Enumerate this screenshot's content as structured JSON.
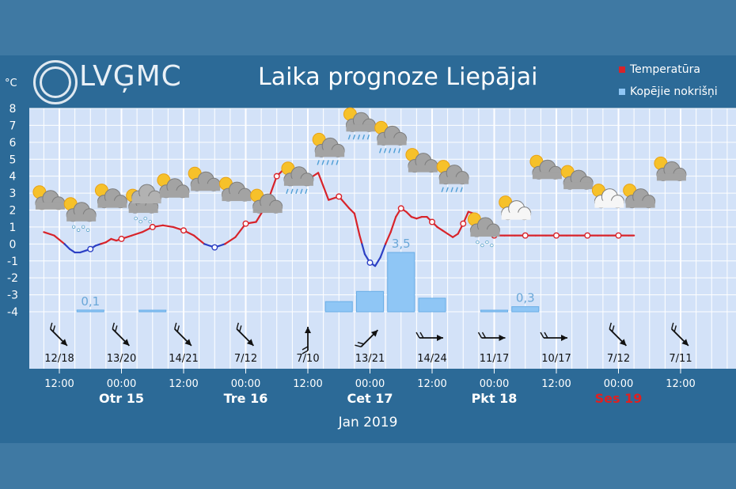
{
  "header": {
    "logo": "LVĢMC",
    "title": "Laika prognoze Liepājai",
    "unit": "°C"
  },
  "legend": [
    {
      "label": "Temperatūra",
      "color": "#d8232a"
    },
    {
      "label": "Kopējie nokrišņi",
      "color": "#8fc6f5"
    }
  ],
  "colors": {
    "temp_above": "#d8232a",
    "temp_below": "#2b3fc4",
    "plot_bg": "#d3e2f8",
    "bar": "#8fc6f5",
    "saturday": "#e02020"
  },
  "chart_data": {
    "type": "line",
    "title": "Laika prognoze Liepājai",
    "ylabel": "°C",
    "ylim": [
      -4,
      8
    ],
    "yticks": [
      8,
      7,
      6,
      5,
      4,
      3,
      2,
      1,
      0,
      -1,
      -2,
      -3,
      -4
    ],
    "grid": true,
    "legend_position": "top-right",
    "xlim_hours": [
      -3,
      111
    ],
    "time_ticks": [
      {
        "h": 0,
        "time": "12:00",
        "day": ""
      },
      {
        "h": 12,
        "time": "00:00",
        "day": "Otr 15"
      },
      {
        "h": 24,
        "time": "12:00",
        "day": ""
      },
      {
        "h": 36,
        "time": "00:00",
        "day": "Tre 16"
      },
      {
        "h": 48,
        "time": "12:00",
        "day": ""
      },
      {
        "h": 60,
        "time": "00:00",
        "day": "Cet 17"
      },
      {
        "h": 72,
        "time": "12:00",
        "day": ""
      },
      {
        "h": 84,
        "time": "00:00",
        "day": "Pkt 18"
      },
      {
        "h": 96,
        "time": "12:00",
        "day": ""
      },
      {
        "h": 108,
        "time": "00:00",
        "day": "Ses 19"
      },
      {
        "h": 120,
        "time": "12:00",
        "day": ""
      }
    ],
    "month_label": "Jan 2019",
    "series": [
      {
        "name": "Temperatūra",
        "x_hours": [
          -3,
          -1,
          1,
          2,
          3,
          4,
          5,
          6,
          7,
          8,
          9,
          10,
          11,
          12,
          14,
          16,
          18,
          20,
          22,
          24,
          26,
          28,
          30,
          32,
          34,
          36,
          38,
          40,
          42,
          44,
          46,
          48,
          50,
          52,
          54,
          56,
          57,
          58,
          59,
          60,
          61,
          62,
          63,
          64,
          65,
          66,
          67,
          68,
          69,
          70,
          71,
          72,
          73,
          74,
          75,
          76,
          77,
          78,
          79,
          80,
          81,
          82,
          84,
          86,
          88,
          90,
          92,
          94,
          96,
          98,
          100,
          102,
          104,
          106,
          108,
          110,
          111
        ],
        "y": [
          0.7,
          0.5,
          0.0,
          -0.3,
          -0.5,
          -0.5,
          -0.4,
          -0.3,
          -0.1,
          0.0,
          0.1,
          0.3,
          0.2,
          0.3,
          0.5,
          0.7,
          1.0,
          1.1,
          1.0,
          0.8,
          0.5,
          0.0,
          -0.2,
          0.0,
          0.4,
          1.2,
          1.3,
          2.3,
          4.0,
          4.6,
          4.2,
          3.8,
          4.2,
          2.6,
          2.8,
          2.1,
          1.8,
          0.5,
          -0.6,
          -1.1,
          -1.3,
          -0.8,
          0.0,
          0.7,
          1.6,
          2.1,
          1.9,
          1.6,
          1.5,
          1.6,
          1.6,
          1.3,
          1.0,
          0.8,
          0.6,
          0.4,
          0.6,
          1.2,
          1.9,
          1.8,
          1.3,
          1.0,
          0.5,
          0.5,
          0.5,
          0.5,
          0.5,
          0.5,
          0.5,
          0.5,
          0.5,
          0.5,
          0.5,
          0.5,
          0.5,
          0.5,
          0.5
        ]
      },
      {
        "name": "Kopējie nokrišņi",
        "bars": [
          {
            "h": 6,
            "value": 0.1,
            "label": "0,1"
          },
          {
            "h": 18,
            "value": 0.05,
            "label": ""
          },
          {
            "h": 54,
            "value": 0.6,
            "label": ""
          },
          {
            "h": 60,
            "value": 1.2,
            "label": ""
          },
          {
            "h": 66,
            "value": 3.5,
            "label": "3,5"
          },
          {
            "h": 72,
            "value": 0.8,
            "label": ""
          },
          {
            "h": 84,
            "value": 0.05,
            "label": ""
          },
          {
            "h": 90,
            "value": 0.3,
            "label": "0,3"
          }
        ]
      }
    ],
    "wind": [
      {
        "h": 0,
        "label": "12/18",
        "icon": "wind-arrow-se-icon"
      },
      {
        "h": 12,
        "label": "13/20",
        "icon": "wind-arrow-se-icon"
      },
      {
        "h": 24,
        "label": "14/21",
        "icon": "wind-arrow-se-icon"
      },
      {
        "h": 36,
        "label": "7/12",
        "icon": "wind-arrow-se-icon"
      },
      {
        "h": 48,
        "label": "7/10",
        "icon": "wind-arrow-n-icon"
      },
      {
        "h": 60,
        "label": "13/21",
        "icon": "wind-arrow-ne-icon"
      },
      {
        "h": 72,
        "label": "14/24",
        "icon": "wind-arrow-e-icon"
      },
      {
        "h": 84,
        "label": "11/17",
        "icon": "wind-arrow-e-icon"
      },
      {
        "h": 96,
        "label": "10/17",
        "icon": "wind-arrow-e-icon"
      },
      {
        "h": 108,
        "label": "7/12",
        "icon": "wind-arrow-se-icon"
      },
      {
        "h": 120,
        "label": "7/11",
        "icon": "wind-arrow-se-icon"
      }
    ],
    "weather_icons": [
      {
        "h": -2,
        "t": 2.5,
        "icon": "partly-cloudy-icon"
      },
      {
        "h": 4,
        "t": 1.8,
        "icon": "snow-showers-icon"
      },
      {
        "h": 10,
        "t": 2.6,
        "icon": "partly-cloudy-icon"
      },
      {
        "h": 16,
        "t": 2.3,
        "icon": "snow-cloud-icon"
      },
      {
        "h": 22,
        "t": 3.2,
        "icon": "partly-cloudy-icon"
      },
      {
        "h": 28,
        "t": 3.6,
        "icon": "partly-cloudy-icon"
      },
      {
        "h": 34,
        "t": 3.0,
        "icon": "partly-cloudy-icon"
      },
      {
        "h": 40,
        "t": 2.3,
        "icon": "partly-cloudy-icon"
      },
      {
        "h": 46,
        "t": 3.9,
        "icon": "rain-cloud-icon"
      },
      {
        "h": 52,
        "t": 5.6,
        "icon": "rain-cloud-icon"
      },
      {
        "h": 58,
        "t": 7.1,
        "icon": "rain-showers-icon"
      },
      {
        "h": 64,
        "t": 6.3,
        "icon": "rain-showers-icon"
      },
      {
        "h": 70,
        "t": 4.7,
        "icon": "partly-cloudy-icon"
      },
      {
        "h": 76,
        "t": 4.0,
        "icon": "rain-showers-icon"
      },
      {
        "h": 82,
        "t": 0.9,
        "icon": "snow-showers-icon"
      },
      {
        "h": 88,
        "t": 1.9,
        "icon": "sun-cloud-icon"
      },
      {
        "h": 94,
        "t": 4.3,
        "icon": "partly-cloudy-icon"
      },
      {
        "h": 100,
        "t": 3.7,
        "icon": "partly-cloudy-icon"
      },
      {
        "h": 106,
        "t": 2.6,
        "icon": "sun-cloud-icon"
      },
      {
        "h": 112,
        "t": 2.6,
        "icon": "partly-cloudy-icon"
      },
      {
        "h": 118,
        "t": 4.2,
        "icon": "partly-cloudy-icon"
      }
    ]
  }
}
